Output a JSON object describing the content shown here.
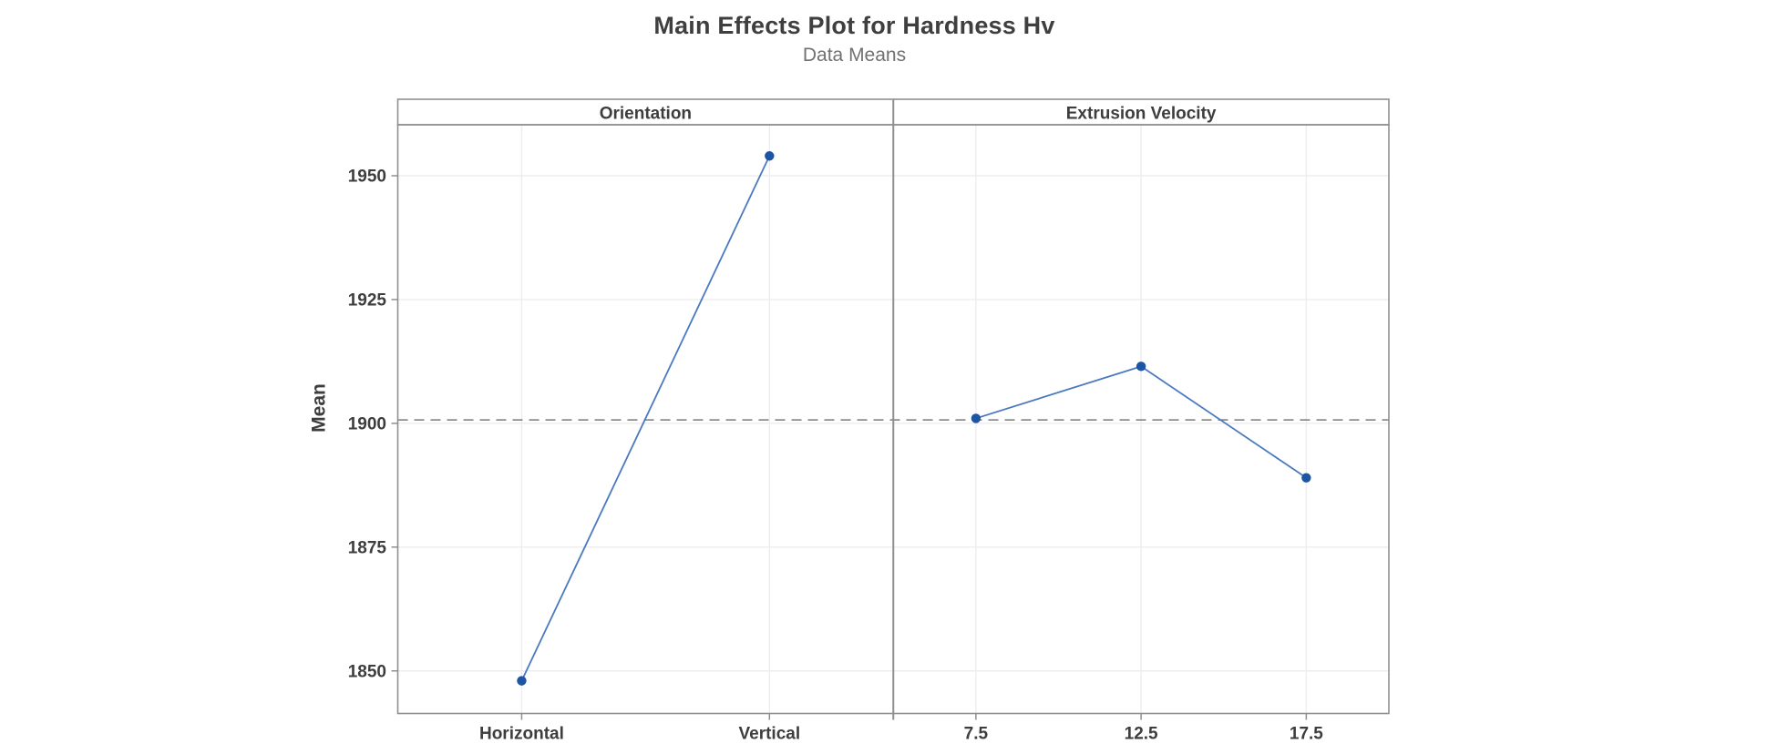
{
  "chart_data": {
    "type": "line",
    "title": "Main Effects Plot for Hardness Hv",
    "subtitle": "Data Means",
    "ylabel": "Mean",
    "ylim": [
      1841.4,
      1960.3
    ],
    "yticks": [
      1850,
      1875,
      1900,
      1925,
      1950
    ],
    "grid": true,
    "reference_line_mean": 1900.7,
    "panels": [
      {
        "label": "Orientation",
        "categories": [
          "Horizontal",
          "Vertical"
        ],
        "values": [
          1848,
          1954
        ]
      },
      {
        "label": "Extrusion Velocity",
        "categories": [
          "7.5",
          "12.5",
          "17.5"
        ],
        "values": [
          1901,
          1911.5,
          1889
        ]
      }
    ],
    "colors": {
      "line": "#4b79c0",
      "marker": "#1c55a3",
      "axis": "#8f8f8f",
      "grid": "#ededed",
      "reference": "#7a7a7a",
      "title_text": "#3f3f3f",
      "subtitle_text": "#717171",
      "label_text": "#3d3d3d"
    }
  }
}
